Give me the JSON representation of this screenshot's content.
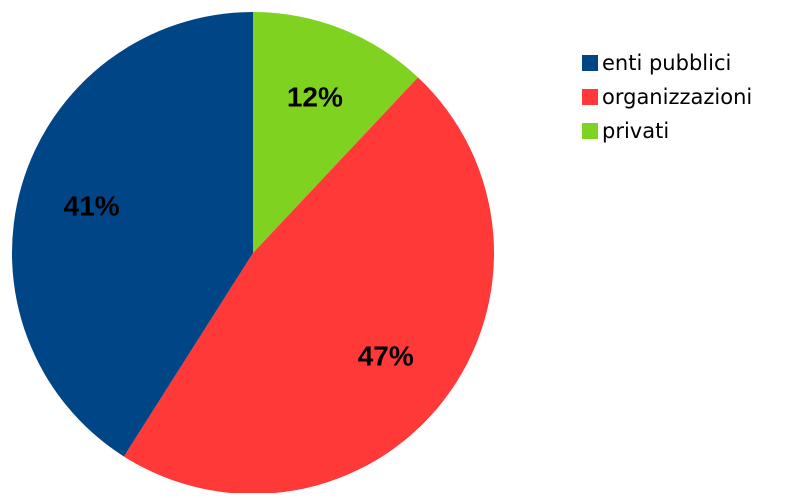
{
  "chart_data": {
    "type": "pie",
    "title": "",
    "slices": [
      {
        "label": "privati",
        "value": 12,
        "display": "12%",
        "color": "#7fd320"
      },
      {
        "label": "organizzazioni",
        "value": 47,
        "display": "47%",
        "color": "#ff3838"
      },
      {
        "label": "enti pubblici",
        "value": 41,
        "display": "41%",
        "color": "#004586"
      }
    ],
    "start_angle": "12 o'clock",
    "direction": "clockwise",
    "legend": {
      "position": "top-right",
      "items": [
        {
          "label": "enti pubblici",
          "color": "#004586"
        },
        {
          "label": "organizzazioni",
          "color": "#ff3838"
        },
        {
          "label": "privati",
          "color": "#7fd320"
        }
      ]
    }
  }
}
